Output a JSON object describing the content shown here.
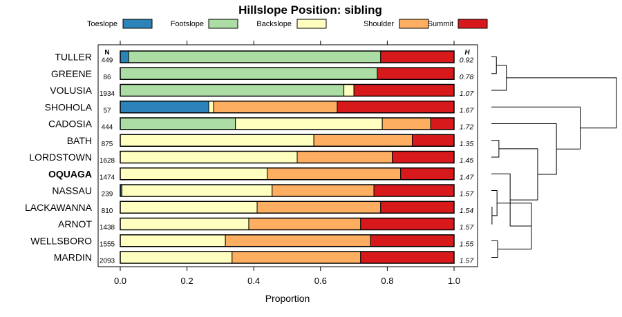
{
  "chart_data": {
    "type": "bar",
    "stacked": true,
    "orientation": "horizontal",
    "title": "Hillslope Position: sibling",
    "xlabel": "Proportion",
    "xlim": [
      0,
      1
    ],
    "x_ticks": [
      "0.0",
      "0.2",
      "0.4",
      "0.6",
      "0.8",
      "1.0"
    ],
    "legend_position": "top",
    "n_header": "N",
    "h_header": "H",
    "highlight": "OQUAGA",
    "series": [
      {
        "name": "Toeslope",
        "color": "#2b83ba"
      },
      {
        "name": "Footslope",
        "color": "#abdda4"
      },
      {
        "name": "Backslope",
        "color": "#ffffbf"
      },
      {
        "name": "Shoulder",
        "color": "#fdae61"
      },
      {
        "name": "Summit",
        "color": "#d7191c"
      }
    ],
    "rows": [
      {
        "label": "TULLER",
        "n": "449",
        "h": "0.92",
        "values": [
          0.025,
          0.755,
          0,
          0,
          0.22
        ]
      },
      {
        "label": "GREENE",
        "n": "86",
        "h": "0.78",
        "values": [
          0,
          0.77,
          0,
          0,
          0.23
        ]
      },
      {
        "label": "VOLUSIA",
        "n": "1934",
        "h": "1.07",
        "values": [
          0,
          0.67,
          0.03,
          0,
          0.3
        ]
      },
      {
        "label": "SHOHOLA",
        "n": "57",
        "h": "1.67",
        "values": [
          0.265,
          0,
          0.015,
          0.37,
          0.35
        ]
      },
      {
        "label": "CADOSIA",
        "n": "444",
        "h": "1.72",
        "values": [
          0,
          0.345,
          0.44,
          0.145,
          0.07
        ]
      },
      {
        "label": "BATH",
        "n": "875",
        "h": "1.35",
        "values": [
          0,
          0,
          0.58,
          0.295,
          0.125
        ]
      },
      {
        "label": "LORDSTOWN",
        "n": "1628",
        "h": "1.45",
        "values": [
          0,
          0,
          0.53,
          0.285,
          0.185
        ]
      },
      {
        "label": "OQUAGA",
        "n": "1474",
        "h": "1.47",
        "values": [
          0,
          0,
          0.44,
          0.4,
          0.16
        ]
      },
      {
        "label": "NASSAU",
        "n": "239",
        "h": "1.57",
        "values": [
          0.005,
          0,
          0.45,
          0.305,
          0.24
        ]
      },
      {
        "label": "LACKAWANNA",
        "n": "810",
        "h": "1.54",
        "values": [
          0,
          0,
          0.41,
          0.37,
          0.22
        ]
      },
      {
        "label": "ARNOT",
        "n": "1438",
        "h": "1.57",
        "values": [
          0,
          0,
          0.385,
          0.335,
          0.28
        ]
      },
      {
        "label": "WELLSBORO",
        "n": "1555",
        "h": "1.55",
        "values": [
          0,
          0,
          0.315,
          0.435,
          0.25
        ]
      },
      {
        "label": "MARDIN",
        "n": "2093",
        "h": "1.57",
        "values": [
          0,
          0,
          0.335,
          0.385,
          0.28
        ]
      }
    ],
    "dendrogram": {
      "type": "hierarchical-clustering",
      "merges": [
        {
          "left": "TULLER",
          "right": "GREENE",
          "height": 0.04
        },
        {
          "left": "m0",
          "right": "VOLUSIA",
          "height": 0.12
        },
        {
          "left": "BATH",
          "right": "LORDSTOWN",
          "height": 0.06
        },
        {
          "left": "ARNOT",
          "right": "LACKAWANNA",
          "height": 0.005
        },
        {
          "left": "m3",
          "right": "NASSAU",
          "height": 0.045
        },
        {
          "left": "WELLSBORO",
          "right": "MARDIN",
          "height": 0.05
        },
        {
          "left": "m4",
          "right": "m5",
          "height": 0.32
        },
        {
          "left": "OQUAGA",
          "right": "m6",
          "height": 0.15
        },
        {
          "left": "m2",
          "right": "m7",
          "height": 0.37
        },
        {
          "left": "CADOSIA",
          "right": "m8",
          "height": 0.52
        },
        {
          "left": "SHOHOLA",
          "right": "m9",
          "height": 0.71
        },
        {
          "left": "m1",
          "right": "m10",
          "height": 1.0
        }
      ]
    }
  }
}
